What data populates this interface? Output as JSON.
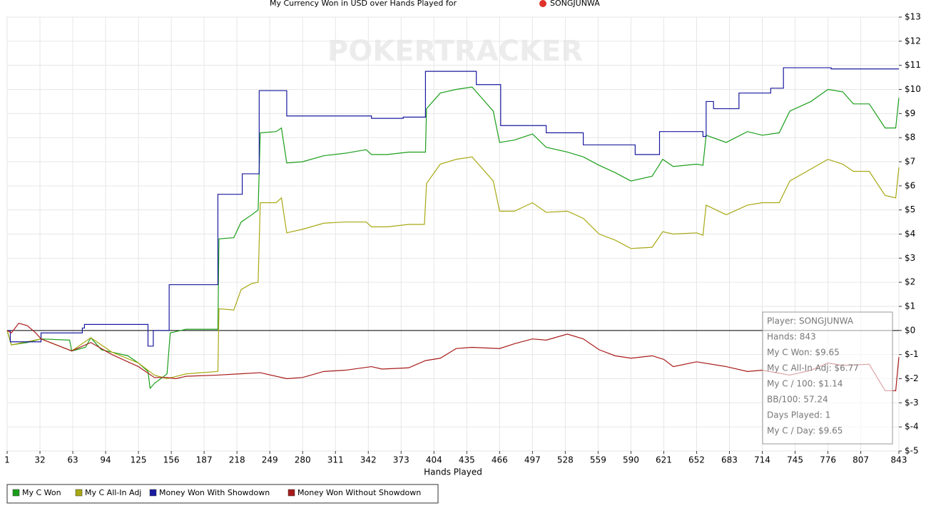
{
  "chart_data": {
    "type": "line",
    "title": "My Currency Won in USD over Hands Played for",
    "title_player": "SONGJUNWA",
    "watermark": "POKERTRACKER",
    "x_label": "Hands Played",
    "xlim": [
      1,
      843
    ],
    "xticks": [
      1,
      32,
      63,
      94,
      125,
      156,
      187,
      218,
      249,
      280,
      311,
      342,
      373,
      404,
      435,
      466,
      497,
      528,
      559,
      590,
      621,
      652,
      683,
      714,
      745,
      776,
      807,
      843
    ],
    "ylim": [
      -5,
      13
    ],
    "yticks": [
      {
        "value": 13,
        "label": "$13"
      },
      {
        "value": 12,
        "label": "$12"
      },
      {
        "value": 11,
        "label": "$11"
      },
      {
        "value": 10,
        "label": "$10"
      },
      {
        "value": 9,
        "label": "$9"
      },
      {
        "value": 8,
        "label": "$8"
      },
      {
        "value": 7,
        "label": "$7"
      },
      {
        "value": 6,
        "label": "$6"
      },
      {
        "value": 5,
        "label": "$5"
      },
      {
        "value": 4,
        "label": "$4"
      },
      {
        "value": 3,
        "label": "$3"
      },
      {
        "value": 2,
        "label": "$2"
      },
      {
        "value": 1,
        "label": "$1"
      },
      {
        "value": 0,
        "label": "$0"
      },
      {
        "value": -1,
        "label": "$-1"
      },
      {
        "value": -2,
        "label": "$-2"
      },
      {
        "value": -3,
        "label": "$-3"
      },
      {
        "value": -4,
        "label": "$-4"
      },
      {
        "value": -5,
        "label": "$-5"
      }
    ],
    "grid": true,
    "legend": "bottom",
    "stats": [
      "Player: SONGJUNWA",
      "Hands: 843",
      "My C Won: $9.65",
      "My C All-In Adj: $6.77",
      "My C / 100: $1.14",
      "BB/100: 57.24",
      "Days Played: 1",
      "My C / Day: $9.65"
    ],
    "series": [
      {
        "name": "My C Won",
        "color": "#1a9e1a",
        "x": [
          1,
          5,
          20,
          33,
          60,
          62,
          75,
          80,
          90,
          100,
          115,
          125,
          134,
          136,
          140,
          152,
          155,
          170,
          190,
          200,
          201,
          215,
          222,
          232,
          238,
          240,
          255,
          260,
          265,
          280,
          300,
          320,
          340,
          345,
          360,
          380,
          396,
          397,
          410,
          425,
          440,
          450,
          460,
          466,
          480,
          497,
          510,
          530,
          545,
          560,
          575,
          590,
          610,
          620,
          630,
          652,
          658,
          661,
          680,
          700,
          714,
          730,
          740,
          760,
          776,
          790,
          800,
          815,
          830,
          840,
          843
        ],
        "values": [
          0,
          -0.6,
          -0.5,
          -0.35,
          -0.4,
          -0.85,
          -0.7,
          -0.3,
          -0.8,
          -0.9,
          -1.05,
          -1.35,
          -1.7,
          -2.4,
          -2.2,
          -1.8,
          -0.1,
          0.05,
          0.05,
          0.05,
          3.8,
          3.85,
          4.5,
          4.8,
          5.0,
          8.2,
          8.25,
          8.4,
          6.95,
          7.0,
          7.25,
          7.35,
          7.5,
          7.3,
          7.3,
          7.4,
          7.4,
          9.2,
          9.85,
          10.0,
          10.1,
          9.6,
          9.1,
          7.8,
          7.9,
          8.15,
          7.6,
          7.4,
          7.2,
          6.85,
          6.55,
          6.2,
          6.4,
          7.1,
          6.8,
          6.9,
          6.85,
          8.1,
          7.8,
          8.25,
          8.1,
          8.2,
          9.1,
          9.5,
          10.0,
          9.9,
          9.4,
          9.4,
          8.4,
          8.4,
          9.65
        ]
      },
      {
        "name": "My C All-In Adj",
        "color": "#a8a814",
        "x": [
          1,
          5,
          33,
          62,
          80,
          100,
          125,
          140,
          152,
          170,
          200,
          201,
          215,
          222,
          232,
          238,
          240,
          255,
          260,
          265,
          280,
          300,
          320,
          340,
          345,
          360,
          380,
          395,
          397,
          410,
          425,
          440,
          450,
          460,
          466,
          480,
          497,
          510,
          530,
          545,
          560,
          575,
          590,
          610,
          620,
          630,
          652,
          658,
          661,
          680,
          700,
          714,
          730,
          740,
          760,
          776,
          790,
          800,
          815,
          830,
          840,
          843
        ],
        "values": [
          0,
          -0.6,
          -0.35,
          -0.85,
          -0.3,
          -0.9,
          -1.35,
          -1.85,
          -2.0,
          -1.8,
          -1.7,
          0.9,
          0.85,
          1.7,
          1.95,
          2.0,
          5.3,
          5.3,
          5.5,
          4.05,
          4.2,
          4.45,
          4.5,
          4.5,
          4.3,
          4.3,
          4.4,
          4.4,
          6.1,
          6.9,
          7.1,
          7.2,
          6.7,
          6.2,
          4.95,
          4.95,
          5.3,
          4.9,
          4.95,
          4.65,
          4.0,
          3.75,
          3.4,
          3.45,
          4.1,
          4.0,
          4.05,
          3.95,
          5.2,
          4.8,
          5.2,
          5.3,
          5.3,
          6.2,
          6.7,
          7.1,
          6.9,
          6.6,
          6.6,
          5.6,
          5.5,
          6.77
        ]
      },
      {
        "name": "Money Won With Showdown",
        "color": "#1a1aa0",
        "step": true,
        "x": [
          1,
          4,
          33,
          72,
          74,
          134,
          139,
          154,
          200,
          223,
          239,
          265,
          345,
          375,
          396,
          444,
          467,
          510,
          545,
          594,
          617,
          658,
          661,
          668,
          692,
          722,
          734,
          779,
          843
        ],
        "values": [
          0,
          -0.47,
          -0.1,
          0.1,
          0.25,
          -0.65,
          0,
          1.9,
          5.65,
          6.5,
          9.95,
          8.9,
          8.8,
          8.85,
          10.75,
          10.2,
          8.5,
          8.2,
          7.7,
          7.3,
          8.25,
          8.05,
          9.5,
          9.2,
          9.85,
          10.05,
          10.9,
          10.85,
          10.85
        ]
      },
      {
        "name": "Money Won Without Showdown",
        "color": "#a81a1a",
        "x": [
          1,
          5,
          12,
          20,
          28,
          33,
          62,
          80,
          100,
          125,
          140,
          152,
          160,
          170,
          200,
          220,
          240,
          265,
          280,
          300,
          320,
          345,
          355,
          380,
          396,
          410,
          425,
          440,
          466,
          480,
          497,
          510,
          530,
          545,
          560,
          575,
          590,
          610,
          621,
          630,
          652,
          680,
          700,
          714,
          740,
          760,
          776,
          790,
          815,
          830,
          840,
          843
        ],
        "values": [
          0,
          -0.1,
          0.3,
          0.2,
          -0.1,
          -0.35,
          -0.85,
          -0.5,
          -1.0,
          -1.5,
          -1.95,
          -1.95,
          -2.0,
          -1.9,
          -1.85,
          -1.8,
          -1.75,
          -2.0,
          -1.95,
          -1.7,
          -1.65,
          -1.5,
          -1.6,
          -1.55,
          -1.25,
          -1.15,
          -0.75,
          -0.7,
          -0.75,
          -0.55,
          -0.35,
          -0.4,
          -0.15,
          -0.35,
          -0.8,
          -1.05,
          -1.15,
          -1.05,
          -1.2,
          -1.5,
          -1.3,
          -1.5,
          -1.7,
          -1.65,
          -1.85,
          -1.65,
          -1.35,
          -1.45,
          -1.4,
          -2.5,
          -2.5,
          -1.1
        ]
      }
    ]
  }
}
